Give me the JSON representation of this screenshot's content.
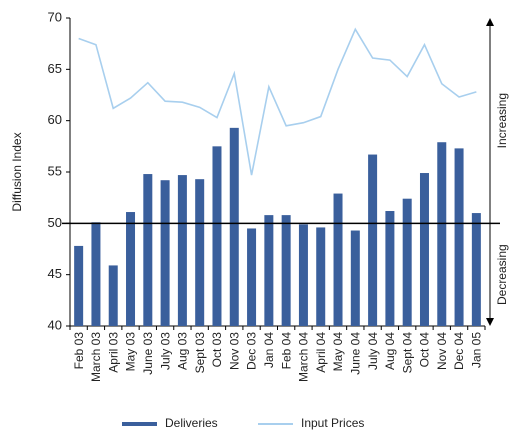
{
  "chart_data": {
    "type": "bar_line",
    "y_label": "Diffusion Index",
    "categories": [
      "Feb 03",
      "March 03",
      "April 03",
      "May 03",
      "June 03",
      "July 03",
      "Aug 03",
      "Sept 03",
      "Oct 03",
      "Nov 03",
      "Dec 03",
      "Jan 04",
      "Feb 04",
      "March 04",
      "April 04",
      "May 04",
      "June 04",
      "July 04",
      "Aug 04",
      "Sept 04",
      "Oct 04",
      "Nov 04",
      "Dec 04",
      "Jan 05"
    ],
    "series": [
      {
        "name": "Deliveries",
        "type": "bar",
        "color": "#3a5f9c",
        "values": [
          47.8,
          50.1,
          45.9,
          51.1,
          54.8,
          54.2,
          54.7,
          54.3,
          57.5,
          59.3,
          49.5,
          50.8,
          50.8,
          49.9,
          49.6,
          52.9,
          49.3,
          56.7,
          51.2,
          52.4,
          54.9,
          57.9,
          57.3,
          51.0
        ]
      },
      {
        "name": "Input Prices",
        "type": "line",
        "color": "#a8cfee",
        "values": [
          68.0,
          67.4,
          61.2,
          62.2,
          63.7,
          61.9,
          61.8,
          61.3,
          60.3,
          64.6,
          54.7,
          63.3,
          59.5,
          59.8,
          60.4,
          65.0,
          68.9,
          66.1,
          65.9,
          64.3,
          67.4,
          63.6,
          62.3,
          62.8
        ]
      }
    ],
    "ylim": [
      40,
      70
    ],
    "yticks": [
      40,
      45,
      50,
      55,
      60,
      65,
      70
    ],
    "reference_line": 50,
    "annotations": [
      "Increasing",
      "Decreasing"
    ]
  }
}
